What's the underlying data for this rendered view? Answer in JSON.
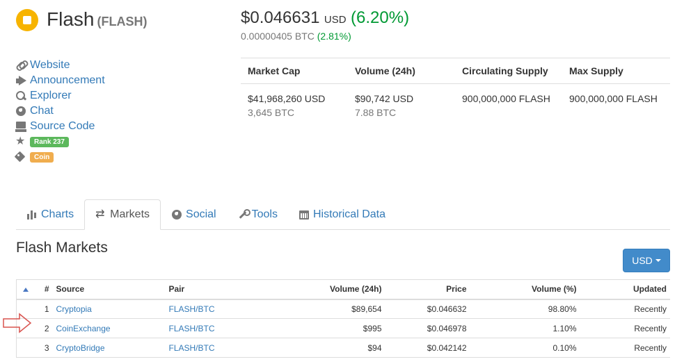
{
  "coin": {
    "name": "Flash",
    "symbol": "(FLASH)",
    "logo_color": "#f7b400"
  },
  "price": {
    "usd": "$0.046631",
    "currency": "USD",
    "change_usd": "(6.20%)",
    "btc": "0.00000405 BTC",
    "change_btc": "(2.81%)"
  },
  "links": [
    {
      "icon": "link-icon",
      "label": "Website"
    },
    {
      "icon": "bullhorn-icon",
      "label": "Announcement"
    },
    {
      "icon": "search-icon",
      "label": "Explorer"
    },
    {
      "icon": "globe-icon",
      "label": "Chat"
    },
    {
      "icon": "hdd-icon",
      "label": "Source Code"
    }
  ],
  "badges": {
    "rank": "Rank 237",
    "type": "Coin"
  },
  "stats": {
    "headers": [
      "Market Cap",
      "Volume (24h)",
      "Circulating Supply",
      "Max Supply"
    ],
    "market_cap_usd": "$41,968,260 USD",
    "market_cap_btc": "3,645 BTC",
    "volume_usd": "$90,742 USD",
    "volume_btc": "7.88 BTC",
    "circulating": "900,000,000 FLASH",
    "max": "900,000,000 FLASH"
  },
  "tabs": [
    {
      "icon": "bar-chart-icon",
      "label": "Charts"
    },
    {
      "icon": "swap-icon",
      "label": "Markets",
      "active": true
    },
    {
      "icon": "globe-icon",
      "label": "Social"
    },
    {
      "icon": "wrench-icon",
      "label": "Tools"
    },
    {
      "icon": "calendar-icon",
      "label": "Historical Data"
    }
  ],
  "markets": {
    "title": "Flash Markets",
    "currency_button": "USD",
    "columns": [
      "#",
      "Source",
      "Pair",
      "Volume (24h)",
      "Price",
      "Volume (%)",
      "Updated"
    ],
    "rows": [
      {
        "rank": "1",
        "source": "Cryptopia",
        "pair": "FLASH/BTC",
        "volume": "$89,654",
        "price": "$0.046632",
        "volume_pct": "98.80%",
        "updated": "Recently"
      },
      {
        "rank": "2",
        "source": "CoinExchange",
        "pair": "FLASH/BTC",
        "volume": "$995",
        "price": "$0.046978",
        "volume_pct": "1.10%",
        "updated": "Recently"
      },
      {
        "rank": "3",
        "source": "CryptoBridge",
        "pair": "FLASH/BTC",
        "volume": "$94",
        "price": "$0.042142",
        "volume_pct": "0.10%",
        "updated": "Recently"
      }
    ]
  },
  "colors": {
    "link": "#337ab7",
    "positive": "#009933",
    "badge_rank": "#5cb85c",
    "badge_type": "#f0ad4e",
    "button": "#428bca",
    "annotation_arrow": "#d9534f"
  }
}
